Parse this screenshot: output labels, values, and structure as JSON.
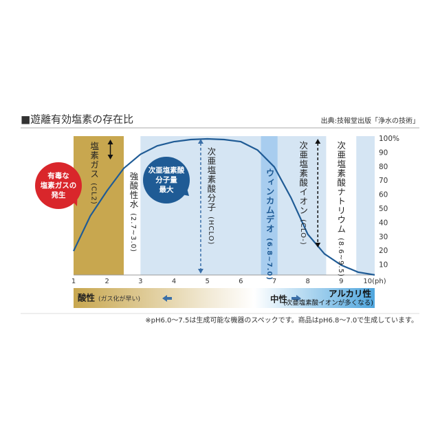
{
  "chart_data": {
    "type": "line",
    "title": "■遊離有効塩素の存在比",
    "source": "出典:技報堂出版「浄水の技術」",
    "x": [
      1,
      1.5,
      2,
      2.5,
      3,
      3.5,
      4,
      4.5,
      5,
      5.5,
      6,
      6.5,
      7,
      7.5,
      8,
      8.5,
      9,
      9.5,
      10
    ],
    "series": [
      {
        "name": "次亜塩素酸分子",
        "color": "#1f5b95",
        "values": [
          20,
          45,
          63,
          79,
          89,
          95,
          98,
          99.5,
          100,
          99.5,
          98,
          92,
          80,
          58,
          32,
          18,
          10,
          5,
          3
        ]
      }
    ],
    "xlim": [
      1,
      10
    ],
    "xticks": [
      1,
      2,
      3,
      4,
      5,
      6,
      7,
      8,
      9,
      {
        "value": 10,
        "label": "10(ph)"
      }
    ],
    "ylim": [
      0,
      100
    ],
    "yticks": [
      10,
      20,
      30,
      40,
      50,
      60,
      70,
      80,
      90,
      {
        "value": 100,
        "label": "100%"
      }
    ],
    "bands": [
      {
        "from": 1,
        "to": 2.5,
        "color": "#c8a74f"
      },
      {
        "from": 3,
        "to": 6.6,
        "color": "#d5e5f3"
      },
      {
        "from": 6.6,
        "to": 7.1,
        "color": "#a8cdef"
      },
      {
        "from": 7.1,
        "to": 8.55,
        "color": "#d5e5f3"
      },
      {
        "from": 9.45,
        "to": 10,
        "color": "#d5e5f3"
      }
    ],
    "labels": [
      {
        "x": 1.6,
        "top": 206,
        "text": "塩素ガス",
        "sub": "(CL2)",
        "color": "#222"
      },
      {
        "x": 2.78,
        "top": 250,
        "text": "強酸性水",
        "sub": "(2.7~3.0)",
        "color": "#222"
      },
      {
        "x": 5.1,
        "top": 214,
        "text": "次亜塩素酸分子",
        "sub": "(HCLO)",
        "color": "#222"
      },
      {
        "x": 6.85,
        "top": 245,
        "text": "ウィンカムデオ",
        "sub": "(6.8~7.0)",
        "color": "#1f5b95"
      },
      {
        "x": 7.85,
        "top": 205,
        "text": "次亜塩素酸イオン",
        "sub": "(CLO-)",
        "color": "#222"
      },
      {
        "x": 8.98,
        "top": 205,
        "text": "次亜塩素酸ナトリウム",
        "sub": "(8.6~9.5)",
        "color": "#222"
      }
    ],
    "callouts": [
      {
        "lines": [
          "有毒な",
          "塩素ガスの",
          "発生"
        ],
        "color": "#d9262b"
      },
      {
        "lines": [
          "次亜塩素酸",
          "分子量",
          "最大"
        ],
        "color": "#1f5b95"
      }
    ],
    "bottom_bar": {
      "left": "酸性",
      "left_note": "(ガス化が早い)",
      "center": "中性",
      "right": "アルカリ性",
      "right_note": "(次亜塩素酸イオンが多くなる)"
    },
    "footnote": "※pH6.0〜7.5は生成可能な機器のスペックです。商品はpH6.8〜7.0で生成しています。"
  }
}
